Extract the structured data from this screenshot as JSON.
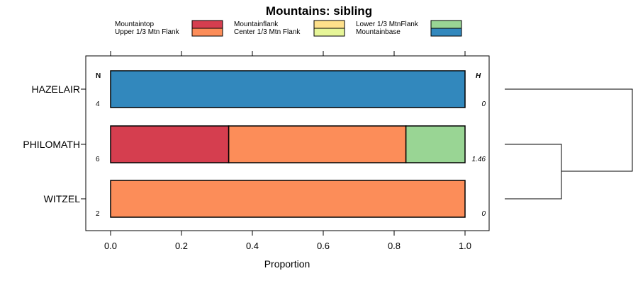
{
  "chart_data": {
    "type": "bar",
    "stacked": true,
    "orientation": "horizontal",
    "title": "Mountains: sibling",
    "xlabel": "Proportion",
    "ylabel": "",
    "xlim": [
      0,
      1
    ],
    "x_ticks": [
      0,
      0.2,
      0.4,
      0.6,
      0.8,
      1
    ],
    "x_tick_labels": [
      "0.0",
      "0.2",
      "0.4",
      "0.6",
      "0.8",
      "1.0"
    ],
    "legend_position": "top",
    "legend": [
      {
        "name": "Mountaintop",
        "color": "#d53e4f"
      },
      {
        "name": "Upper 1/3 Mtn Flank",
        "color": "#fc8d59"
      },
      {
        "name": "Mountainflank",
        "color": "#fee08b"
      },
      {
        "name": "Center 1/3 Mtn Flank",
        "color": "#e6f598"
      },
      {
        "name": "Lower 1/3 MtnFlank",
        "color": "#99d594"
      },
      {
        "name": "Mountainbase",
        "color": "#3288bd"
      }
    ],
    "n_header": "N",
    "h_header": "H",
    "categories": [
      "HAZELAIR",
      "PHILOMATH",
      "WITZEL"
    ],
    "n_values": [
      "4",
      "6",
      "2"
    ],
    "h_values": [
      "0",
      "1.46",
      "0"
    ],
    "series": [
      {
        "name": "Mountaintop",
        "values": [
          0,
          0.3333,
          0
        ]
      },
      {
        "name": "Upper 1/3 Mtn Flank",
        "values": [
          0,
          0.5,
          1
        ]
      },
      {
        "name": "Mountainflank",
        "values": [
          0,
          0,
          0
        ]
      },
      {
        "name": "Center 1/3 Mtn Flank",
        "values": [
          0,
          0,
          0
        ]
      },
      {
        "name": "Lower 1/3 MtnFlank",
        "values": [
          0,
          0.1667,
          0
        ]
      },
      {
        "name": "Mountainbase",
        "values": [
          1,
          0,
          0
        ]
      }
    ],
    "dendrogram": {
      "merges": [
        [
          "PHILOMATH",
          "WITZEL"
        ],
        [
          "HAZELAIR",
          "PHILOMATH+WITZEL"
        ]
      ]
    }
  }
}
